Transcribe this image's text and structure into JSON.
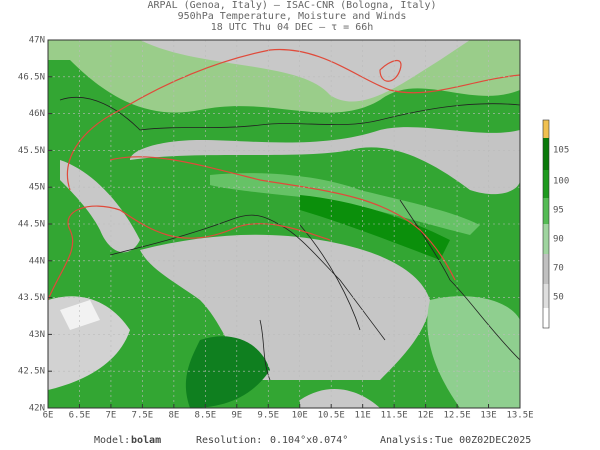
{
  "header": {
    "lines": [
      "ARPAL (Genoa, Italy)  –  ISAC-CNR (Bologna, Italy)",
      "950hPa Temperature, Moisture and Winds",
      "18 UTC Thu 04 DEC  –  τ = 66h"
    ]
  },
  "map": {
    "lat_labels": [
      "47N",
      "46.5N",
      "46N",
      "45.5N",
      "45N",
      "44.5N",
      "44N",
      "43.5N",
      "43N",
      "42.5N",
      "42N"
    ],
    "lon_labels": [
      "6E",
      "6.5E",
      "7E",
      "7.5E",
      "8E",
      "8.5E",
      "9E",
      "9.5E",
      "10E",
      "10.5E",
      "11E",
      "11.5E",
      "12E",
      "12.5E",
      "13E",
      "13.5E"
    ],
    "colorbar": {
      "labels": [
        105,
        100,
        95,
        90,
        70,
        50
      ]
    }
  },
  "footer": {
    "model": {
      "label": "Model:",
      "value": "bolam"
    },
    "resolution": {
      "label": "Resolution:",
      "value": "0.104°x0.074°"
    },
    "analysis": {
      "label": "Analysis:",
      "value": "Tue 00Z02DEC2025"
    }
  }
}
